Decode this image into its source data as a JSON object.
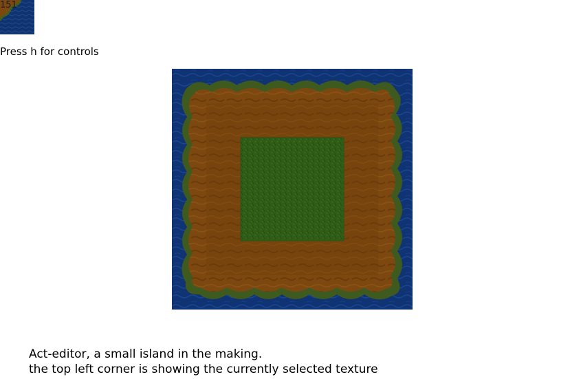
{
  "selected_texture": {
    "index_label": "151",
    "icon": "shore-dirt-over-water-texture"
  },
  "help": {
    "text": "Press h for controls"
  },
  "map": {
    "icon": "island-map",
    "colors": {
      "water": "#0f3373",
      "shore": "#3f5a1e",
      "dirt": "#7d4810",
      "dirt_dark": "#6e3e0c",
      "grass": "#2f5d17"
    }
  },
  "caption": {
    "line1": "Act-editor, a small island in the making.",
    "line2": "the top left corner is showing the currently selected texture"
  }
}
